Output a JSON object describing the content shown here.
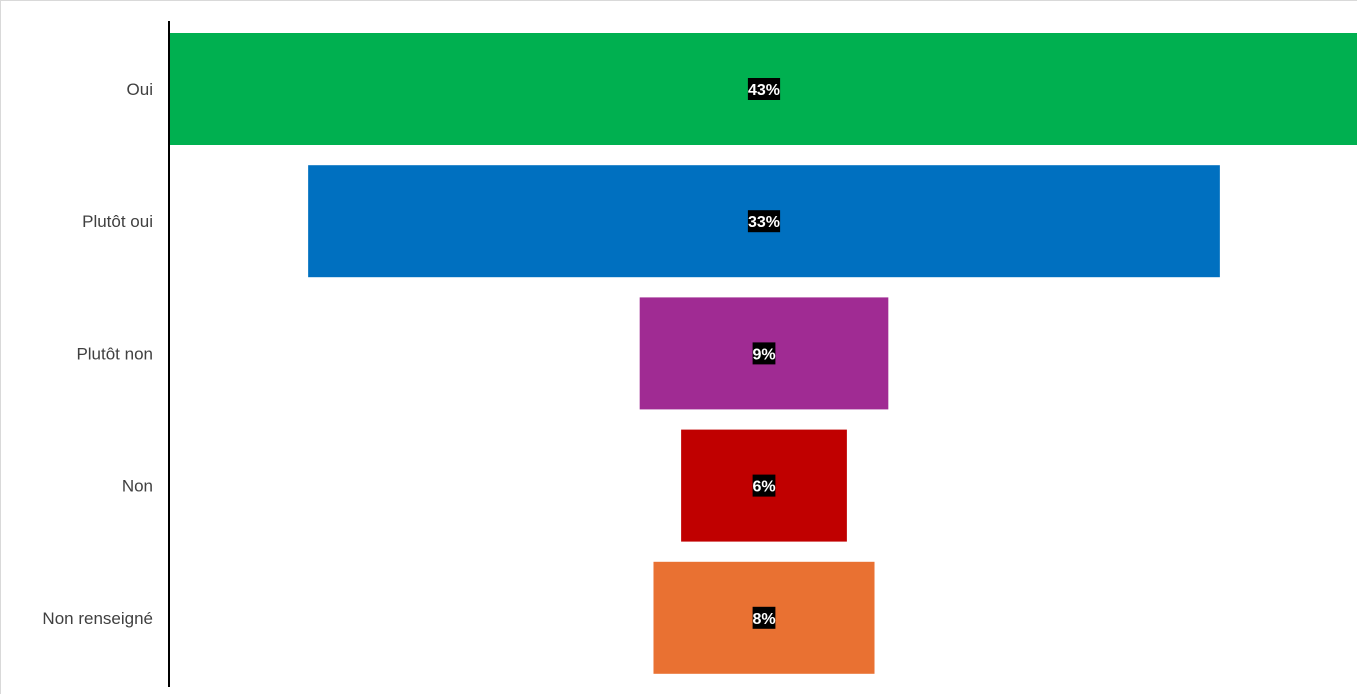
{
  "chart_data": {
    "type": "bar",
    "orientation": "horizontal",
    "style": "funnel",
    "categories": [
      "Oui",
      "Plutôt oui",
      "Plutôt non",
      "Non",
      "Non renseigné"
    ],
    "values": [
      43,
      33,
      9,
      6,
      8
    ],
    "data_labels": [
      "43%",
      "33%",
      "9%",
      "6%",
      "8%"
    ],
    "unit": "%",
    "colors": [
      "#00B050",
      "#0070C0",
      "#A02B93",
      "#C00000",
      "#E97132"
    ],
    "data_label_background": "#000000",
    "data_label_color": "#FFFFFF",
    "label_color": "#404040",
    "axis_color": "#000000",
    "title": "",
    "xlabel": "",
    "ylabel": "",
    "grid": false,
    "legend": "none"
  }
}
